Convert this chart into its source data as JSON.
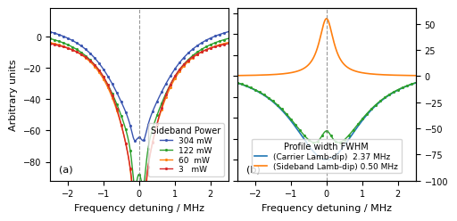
{
  "panel_a": {
    "curves": [
      {
        "label": "304 mW",
        "color": "#3a55b0",
        "broad_amp": -65,
        "broad_fwhm": 2.0,
        "narrow_amp": -12,
        "narrow_fwhm": 0.25,
        "narrow_sep": 0.13,
        "base": 12
      },
      {
        "label": "122 mW",
        "color": "#2ca02c",
        "broad_amp": -72,
        "broad_fwhm": 1.8,
        "narrow_amp": -28,
        "narrow_fwhm": 0.2,
        "narrow_sep": 0.12,
        "base": 7
      },
      {
        "label": "60  mW",
        "color": "#ff7f0e",
        "broad_amp": -82,
        "broad_fwhm": 1.5,
        "narrow_amp": -55,
        "narrow_fwhm": 0.15,
        "narrow_sep": 0.1,
        "base": 3
      },
      {
        "label": "3   mW",
        "color": "#d62728",
        "broad_amp": -88,
        "broad_fwhm": 1.3,
        "narrow_amp": -82,
        "narrow_fwhm": 0.1,
        "narrow_sep": 0.07,
        "base": 1
      }
    ],
    "xlim": [
      -2.5,
      2.5
    ],
    "ylim": [
      -92,
      18
    ],
    "xticks": [
      -2,
      -1,
      0,
      1,
      2
    ],
    "yticks": [
      0,
      -20,
      -40,
      -60,
      -80
    ],
    "ylabel": "Arbitrary units",
    "xlabel": "Frequency detuning / MHz",
    "legend_title": "Sideband Power",
    "panel_label": "(a)"
  },
  "panel_b": {
    "blue": {
      "color": "#1f77b4",
      "label": "(Carrier Lamb-dip)  2.37 MHz",
      "amp": -90,
      "fwhm": 2.37,
      "base": 10
    },
    "orange": {
      "color": "#ff7f0e",
      "label": "(Sideband Lamb-dip) 0.50 MHz",
      "amp": 55,
      "fwhm": 0.5
    },
    "green": {
      "color": "#2ca02c"
    },
    "xlim": [
      -2.5,
      2.5
    ],
    "ylim": [
      -100,
      65
    ],
    "xticks": [
      -2,
      -1,
      0,
      1,
      2
    ],
    "yticks": [
      -100,
      -75,
      -50,
      -25,
      0,
      25,
      50
    ],
    "xlabel": "Frequency detuning / MHz",
    "legend_title": "Profile width FWHM",
    "panel_label": "(b)"
  }
}
